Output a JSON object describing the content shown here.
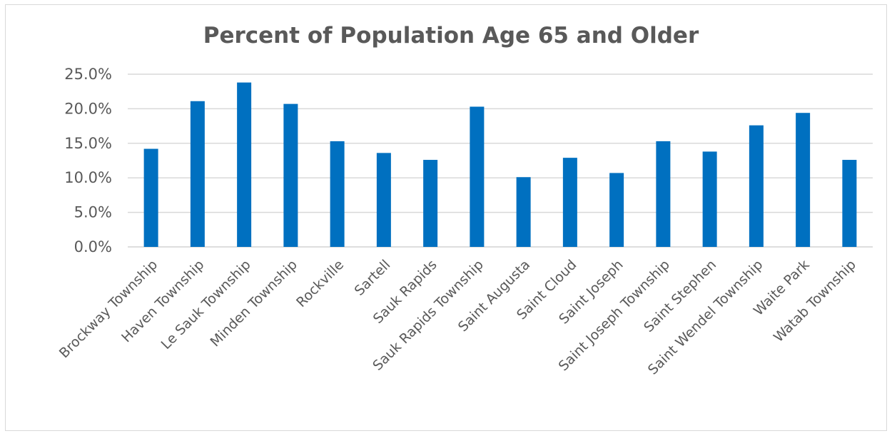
{
  "chart_data": {
    "type": "bar",
    "title": "Percent of Population Age 65 and Older",
    "xlabel": "",
    "ylabel": "",
    "categories": [
      "Brockway Township",
      "Haven Township",
      "Le Sauk Township",
      "Minden Township",
      "Rockville",
      "Sartell",
      "Sauk Rapids",
      "Sauk Rapids Township",
      "Saint Augusta",
      "Saint Cloud",
      "Saint Joseph",
      "Saint Joseph Township",
      "Saint Stephen",
      "Saint Wendel Township",
      "Waite Park",
      "Watab Township"
    ],
    "values": [
      14.2,
      21.1,
      23.8,
      20.7,
      15.3,
      13.6,
      12.6,
      20.3,
      10.1,
      12.9,
      10.7,
      15.3,
      13.8,
      17.6,
      19.4,
      12.6
    ],
    "ylim": [
      0,
      25
    ],
    "yticks": [
      0,
      5,
      10,
      15,
      20,
      25
    ],
    "ytick_labels": [
      "0.0%",
      "5.0%",
      "10.0%",
      "15.0%",
      "20.0%",
      "25.0%"
    ],
    "grid": true,
    "legend": "none",
    "bar_color": "#0070c0",
    "grid_color": "#d9d9d9"
  }
}
